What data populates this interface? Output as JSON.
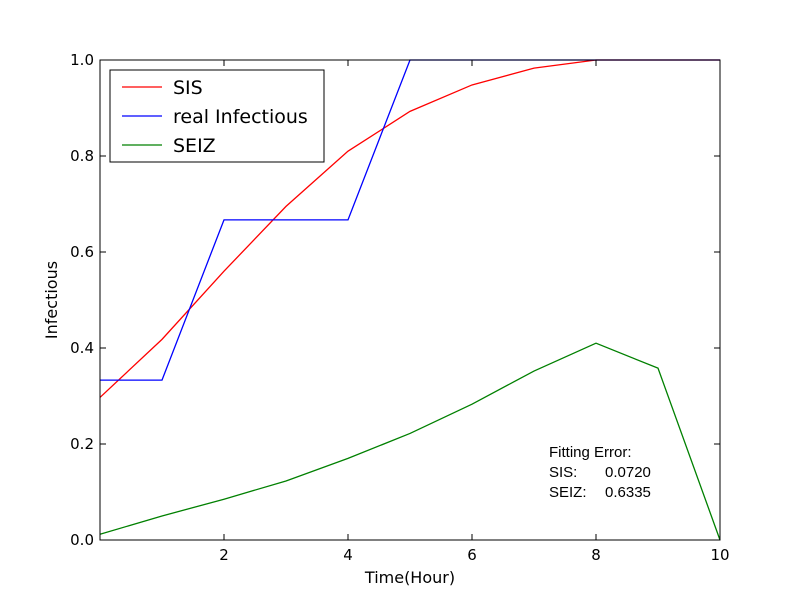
{
  "chart_data": {
    "type": "line",
    "title": "",
    "xlabel": "Time(Hour)",
    "ylabel": "Infectious",
    "xlim": [
      0,
      10
    ],
    "ylim": [
      0.0,
      1.0
    ],
    "x_ticks": [
      2,
      4,
      6,
      8,
      10
    ],
    "x_tick_labels": [
      "2",
      "4",
      "6",
      "8",
      "10"
    ],
    "y_ticks": [
      0.0,
      0.2,
      0.4,
      0.6,
      0.8,
      1.0
    ],
    "y_tick_labels": [
      "0.0",
      "0.2",
      "0.4",
      "0.6",
      "0.8",
      "1.0"
    ],
    "grid": false,
    "legend_position": "upper-left",
    "series": [
      {
        "name": "SIS",
        "color": "#ff0000",
        "x": [
          0,
          1,
          2,
          3,
          4,
          5,
          6,
          7,
          8,
          9,
          10
        ],
        "values": [
          0.297,
          0.418,
          0.56,
          0.695,
          0.81,
          0.893,
          0.948,
          0.983,
          1.0,
          1.0,
          1.0
        ]
      },
      {
        "name": "real Infectious",
        "color": "#0000ff",
        "x": [
          0,
          1,
          2,
          3,
          4,
          5,
          6,
          7,
          8,
          9,
          10
        ],
        "values": [
          0.333,
          0.333,
          0.667,
          0.667,
          0.667,
          1.0,
          1.0,
          1.0,
          1.0,
          1.0,
          1.0
        ]
      },
      {
        "name": "SEIZ",
        "color": "#008000",
        "x": [
          0,
          1,
          2,
          3,
          4,
          5,
          6,
          7,
          8,
          9,
          10
        ],
        "values": [
          0.012,
          0.05,
          0.085,
          0.123,
          0.17,
          0.222,
          0.283,
          0.352,
          0.41,
          0.358,
          0.0
        ]
      }
    ],
    "annotation": {
      "title": "Fitting Error:",
      "rows": [
        {
          "label": "SIS:",
          "value": "0.0720"
        },
        {
          "label": "SEIZ:",
          "value": "0.6335"
        }
      ]
    }
  }
}
